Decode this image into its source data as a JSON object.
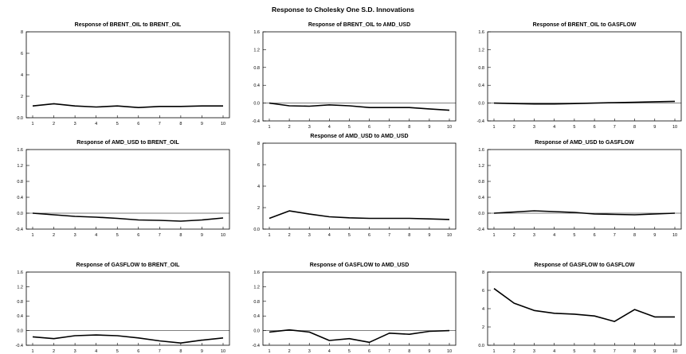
{
  "figure_title": "Response to Cholesky One S.D. Innovations",
  "chart_data": [
    {
      "type": "line",
      "title": "Response of BRENT_OIL to BRENT_OIL",
      "x": [
        1,
        2,
        3,
        4,
        5,
        6,
        7,
        8,
        9,
        10
      ],
      "values": [
        1.1,
        1.3,
        1.1,
        1.0,
        1.1,
        0.95,
        1.05,
        1.05,
        1.1,
        1.1
      ],
      "ylim": [
        0,
        8
      ],
      "yticks": [
        0,
        2,
        4,
        6,
        8
      ]
    },
    {
      "type": "line",
      "title": "Response of BRENT_OIL to AMD_USD",
      "x": [
        1,
        2,
        3,
        4,
        5,
        6,
        7,
        8,
        9,
        10
      ],
      "values": [
        0.0,
        -0.06,
        -0.07,
        -0.04,
        -0.06,
        -0.1,
        -0.1,
        -0.1,
        -0.13,
        -0.16
      ],
      "ylim": [
        -0.4,
        1.6
      ],
      "yticks": [
        -0.4,
        0.0,
        0.4,
        0.8,
        1.2,
        1.6
      ]
    },
    {
      "type": "line",
      "title": "Response of BRENT_OIL to GASFLOW",
      "x": [
        1,
        2,
        3,
        4,
        5,
        6,
        7,
        8,
        9,
        10
      ],
      "values": [
        0.0,
        -0.01,
        -0.02,
        -0.02,
        -0.01,
        0.0,
        0.01,
        0.02,
        0.03,
        0.04
      ],
      "ylim": [
        -0.4,
        1.6
      ],
      "yticks": [
        -0.4,
        0.0,
        0.4,
        0.8,
        1.2,
        1.6
      ]
    },
    {
      "type": "line",
      "title": "Response of AMD_USD to BRENT_OIL",
      "x": [
        1,
        2,
        3,
        4,
        5,
        6,
        7,
        8,
        9,
        10
      ],
      "values": [
        0.0,
        -0.04,
        -0.08,
        -0.1,
        -0.13,
        -0.17,
        -0.18,
        -0.2,
        -0.17,
        -0.12
      ],
      "ylim": [
        -0.4,
        1.6
      ],
      "yticks": [
        -0.4,
        0.0,
        0.4,
        0.8,
        1.2,
        1.6
      ]
    },
    {
      "type": "line",
      "title": "Response of AMD_USD to AMD_USD",
      "x": [
        1,
        2,
        3,
        4,
        5,
        6,
        7,
        8,
        9,
        10
      ],
      "values": [
        1.0,
        1.7,
        1.4,
        1.15,
        1.05,
        1.0,
        1.0,
        1.0,
        0.95,
        0.9
      ],
      "ylim": [
        0,
        8
      ],
      "yticks": [
        0,
        2,
        4,
        6,
        8
      ]
    },
    {
      "type": "line",
      "title": "Response of AMD_USD to GASFLOW",
      "x": [
        1,
        2,
        3,
        4,
        5,
        6,
        7,
        8,
        9,
        10
      ],
      "values": [
        0.0,
        0.03,
        0.06,
        0.04,
        0.02,
        -0.02,
        -0.03,
        -0.04,
        -0.02,
        0.0
      ],
      "ylim": [
        -0.4,
        1.6
      ],
      "yticks": [
        -0.4,
        0.0,
        0.4,
        0.8,
        1.2,
        1.6
      ]
    },
    {
      "type": "line",
      "title": "Response of GASFLOW to BRENT_OIL",
      "x": [
        1,
        2,
        3,
        4,
        5,
        6,
        7,
        8,
        9,
        10
      ],
      "values": [
        -0.17,
        -0.22,
        -0.14,
        -0.12,
        -0.14,
        -0.2,
        -0.28,
        -0.34,
        -0.26,
        -0.2
      ],
      "ylim": [
        -0.4,
        1.6
      ],
      "yticks": [
        -0.4,
        0.0,
        0.4,
        0.8,
        1.2,
        1.6
      ]
    },
    {
      "type": "line",
      "title": "Response of GASFLOW to AMD_USD",
      "x": [
        1,
        2,
        3,
        4,
        5,
        6,
        7,
        8,
        9,
        10
      ],
      "values": [
        -0.04,
        0.02,
        -0.04,
        -0.27,
        -0.22,
        -0.32,
        -0.07,
        -0.1,
        -0.02,
        0.0
      ],
      "ylim": [
        -0.4,
        1.6
      ],
      "yticks": [
        -0.4,
        0.0,
        0.4,
        0.8,
        1.2,
        1.6
      ]
    },
    {
      "type": "line",
      "title": "Response of GASFLOW to GASFLOW",
      "x": [
        1,
        2,
        3,
        4,
        5,
        6,
        7,
        8,
        9,
        10
      ],
      "values": [
        6.2,
        4.6,
        3.8,
        3.5,
        3.4,
        3.2,
        2.6,
        3.9,
        3.1,
        3.1
      ],
      "ylim": [
        0,
        8
      ],
      "yticks": [
        0,
        2,
        4,
        6,
        8
      ]
    }
  ]
}
